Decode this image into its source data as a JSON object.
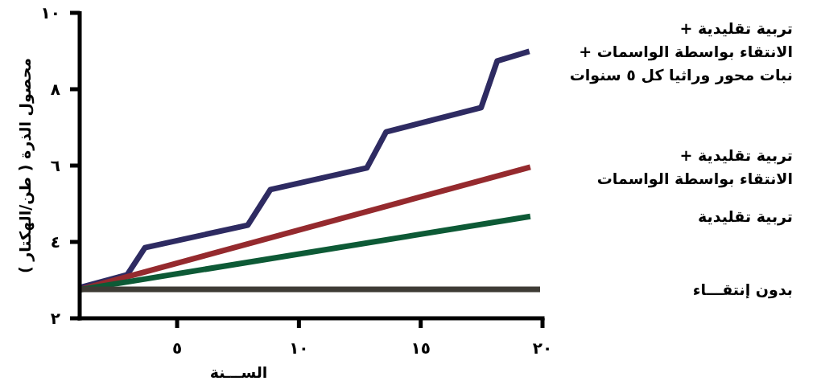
{
  "chart_data": {
    "type": "line",
    "xlabel": "الســـنة",
    "ylabel": "محصول الذرة ( طن/الهكتار )",
    "xlim": [
      1,
      20
    ],
    "ylim": [
      2,
      10
    ],
    "xticks": [
      {
        "value": 5,
        "label": "٥"
      },
      {
        "value": 10,
        "label": "١٠"
      },
      {
        "value": 15,
        "label": "١٥"
      },
      {
        "value": 20,
        "label": "٢٠"
      }
    ],
    "yticks": [
      {
        "value": 2,
        "label": "٢"
      },
      {
        "value": 4,
        "label": "٤"
      },
      {
        "value": 6,
        "label": "٦"
      },
      {
        "value": 8,
        "label": "٨"
      },
      {
        "value": 10,
        "label": "١٠"
      }
    ],
    "grid": false,
    "legend": false,
    "marker": "none",
    "line_style": "solid",
    "series": [
      {
        "name": "تربية تقليدية +\nالانتقاء بواسطة الواسمات +\nنبات محور وراثيا كل ٥ سنوات",
        "color": "#2e2b62",
        "x": [
          1.0,
          2.95,
          3.68,
          7.9,
          8.83,
          12.79,
          13.58,
          17.48,
          18.14,
          19.46
        ],
        "values": [
          2.8,
          3.14,
          3.85,
          4.44,
          5.37,
          5.94,
          6.88,
          7.52,
          8.74,
          8.99
        ]
      },
      {
        "name": "تربية تقليدية +\nالانتقاء بواسطة الواسمات",
        "color": "#952a2e",
        "x": [
          1.0,
          19.5
        ],
        "values": [
          2.75,
          5.96
        ]
      },
      {
        "name": "تربية تقليدية",
        "color": "#0d5a36",
        "x": [
          1.0,
          19.5
        ],
        "values": [
          2.75,
          4.67
        ]
      },
      {
        "name": "بدون إنتقـــاء",
        "color": "#3e3b35",
        "x": [
          1.0,
          19.9
        ],
        "values": [
          2.76,
          2.76
        ]
      }
    ]
  }
}
